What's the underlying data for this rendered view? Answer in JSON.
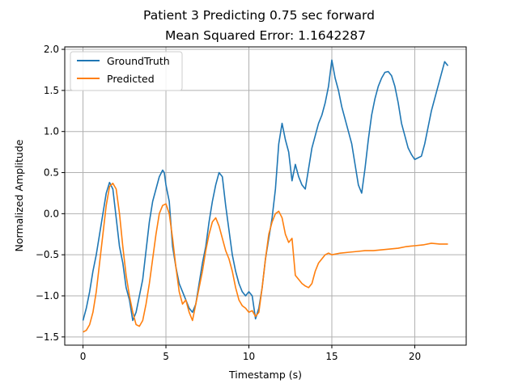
{
  "chart_data": {
    "type": "line",
    "title": "Patient 3 Predicting 0.75 sec forward",
    "subtitle": "Mean Squared Error: 1.1642287",
    "xlabel": "Timestamp (s)",
    "ylabel": "Normalized Amplitude",
    "xlim": [
      -1.1,
      23.1
    ],
    "ylim": [
      -1.6,
      2.03
    ],
    "xticks": [
      0,
      5,
      10,
      15,
      20
    ],
    "xtick_labels": [
      "0",
      "5",
      "10",
      "15",
      "20"
    ],
    "yticks": [
      -1.5,
      -1.0,
      -0.5,
      0.0,
      0.5,
      1.0,
      1.5,
      2.0
    ],
    "ytick_labels": [
      "−1.5",
      "−1.0",
      "−0.5",
      "0.0",
      "0.5",
      "1.0",
      "1.5",
      "2.0"
    ],
    "grid": true,
    "legend_position": "top-left",
    "colors": {
      "GroundTruth": "#1f77b4",
      "Predicted": "#ff7f0e",
      "grid": "#b0b0b0"
    },
    "series": [
      {
        "name": "GroundTruth",
        "x": [
          0,
          0.2,
          0.4,
          0.6,
          0.8,
          1.0,
          1.2,
          1.4,
          1.6,
          1.8,
          2.0,
          2.2,
          2.4,
          2.6,
          2.8,
          3.0,
          3.2,
          3.4,
          3.6,
          3.8,
          4.0,
          4.2,
          4.4,
          4.6,
          4.8,
          4.9,
          5.0,
          5.2,
          5.4,
          5.6,
          5.8,
          6.0,
          6.2,
          6.4,
          6.6,
          6.8,
          7.0,
          7.2,
          7.4,
          7.6,
          7.8,
          8.0,
          8.2,
          8.4,
          8.6,
          8.8,
          9.0,
          9.2,
          9.4,
          9.6,
          9.8,
          10.0,
          10.2,
          10.4,
          10.6,
          10.8,
          11.0,
          11.2,
          11.4,
          11.6,
          11.8,
          12.0,
          12.2,
          12.4,
          12.6,
          12.8,
          13.0,
          13.2,
          13.4,
          13.6,
          13.8,
          14.0,
          14.2,
          14.4,
          14.6,
          14.8,
          15.0,
          15.2,
          15.4,
          15.6,
          15.8,
          16.0,
          16.2,
          16.4,
          16.6,
          16.8,
          17.0,
          17.2,
          17.4,
          17.6,
          17.8,
          18.0,
          18.2,
          18.4,
          18.6,
          18.8,
          19.0,
          19.2,
          19.4,
          19.6,
          19.8,
          20.0,
          20.2,
          20.4,
          20.6,
          20.8,
          21.0,
          21.2,
          21.4,
          21.6,
          21.8,
          22.0
        ],
        "values": [
          -1.3,
          -1.15,
          -0.95,
          -0.7,
          -0.5,
          -0.25,
          0.0,
          0.25,
          0.38,
          0.3,
          -0.05,
          -0.4,
          -0.6,
          -0.9,
          -1.05,
          -1.3,
          -1.2,
          -1.0,
          -0.8,
          -0.45,
          -0.1,
          0.15,
          0.3,
          0.45,
          0.53,
          0.5,
          0.35,
          0.15,
          -0.4,
          -0.65,
          -0.85,
          -0.95,
          -1.05,
          -1.15,
          -1.2,
          -1.1,
          -0.85,
          -0.6,
          -0.4,
          -0.1,
          0.15,
          0.35,
          0.5,
          0.45,
          0.1,
          -0.2,
          -0.5,
          -0.7,
          -0.85,
          -0.95,
          -1.0,
          -0.95,
          -1.0,
          -1.28,
          -1.15,
          -0.9,
          -0.55,
          -0.3,
          -0.05,
          0.3,
          0.85,
          1.1,
          0.9,
          0.75,
          0.4,
          0.6,
          0.45,
          0.35,
          0.3,
          0.55,
          0.8,
          0.95,
          1.1,
          1.2,
          1.35,
          1.55,
          1.87,
          1.65,
          1.5,
          1.3,
          1.15,
          1.0,
          0.85,
          0.6,
          0.35,
          0.25,
          0.55,
          0.9,
          1.2,
          1.4,
          1.55,
          1.65,
          1.72,
          1.73,
          1.68,
          1.55,
          1.35,
          1.1,
          0.95,
          0.8,
          0.72,
          0.66,
          0.68,
          0.7,
          0.85,
          1.05,
          1.25,
          1.4,
          1.55,
          1.7,
          1.85,
          1.8
        ]
      },
      {
        "name": "Predicted",
        "x": [
          0,
          0.2,
          0.4,
          0.6,
          0.8,
          1.0,
          1.2,
          1.4,
          1.6,
          1.8,
          2.0,
          2.2,
          2.4,
          2.6,
          2.8,
          3.0,
          3.2,
          3.4,
          3.6,
          3.8,
          4.0,
          4.2,
          4.4,
          4.6,
          4.8,
          5.0,
          5.2,
          5.4,
          5.6,
          5.8,
          6.0,
          6.2,
          6.4,
          6.6,
          6.8,
          7.0,
          7.2,
          7.4,
          7.6,
          7.8,
          8.0,
          8.2,
          8.4,
          8.6,
          8.8,
          9.0,
          9.2,
          9.4,
          9.6,
          9.8,
          10.0,
          10.2,
          10.4,
          10.6,
          10.8,
          11.0,
          11.2,
          11.4,
          11.6,
          11.8,
          12.0,
          12.2,
          12.4,
          12.6,
          12.8,
          13.0,
          13.2,
          13.4,
          13.6,
          13.8,
          14.0,
          14.2,
          14.4,
          14.6,
          14.8,
          15.0,
          15.5,
          16.0,
          16.5,
          17.0,
          17.5,
          18.0,
          18.5,
          19.0,
          19.5,
          20.0,
          20.5,
          21.0,
          21.5,
          22.0
        ],
        "values": [
          -1.44,
          -1.42,
          -1.35,
          -1.2,
          -0.95,
          -0.6,
          -0.25,
          0.1,
          0.33,
          0.37,
          0.3,
          0.0,
          -0.4,
          -0.75,
          -1.0,
          -1.2,
          -1.35,
          -1.37,
          -1.3,
          -1.1,
          -0.85,
          -0.55,
          -0.25,
          0.0,
          0.1,
          0.12,
          0.0,
          -0.3,
          -0.65,
          -0.95,
          -1.1,
          -1.05,
          -1.2,
          -1.3,
          -1.1,
          -0.9,
          -0.7,
          -0.45,
          -0.25,
          -0.1,
          -0.05,
          -0.15,
          -0.3,
          -0.45,
          -0.55,
          -0.7,
          -0.9,
          -1.05,
          -1.12,
          -1.15,
          -1.2,
          -1.18,
          -1.25,
          -1.2,
          -0.9,
          -0.55,
          -0.25,
          -0.1,
          0.0,
          0.03,
          -0.05,
          -0.25,
          -0.35,
          -0.3,
          -0.75,
          -0.8,
          -0.85,
          -0.88,
          -0.9,
          -0.85,
          -0.7,
          -0.6,
          -0.55,
          -0.5,
          -0.48,
          -0.5,
          -0.48,
          -0.47,
          -0.46,
          -0.45,
          -0.45,
          -0.44,
          -0.43,
          -0.42,
          -0.4,
          -0.39,
          -0.38,
          -0.36,
          -0.37,
          -0.37
        ]
      }
    ]
  }
}
